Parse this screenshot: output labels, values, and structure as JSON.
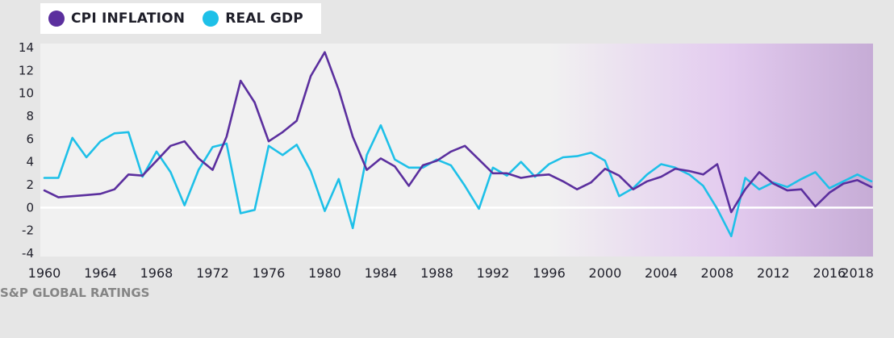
{
  "legend": {
    "items": [
      {
        "label": "CPI INFLATION",
        "color": "#5b2f9e"
      },
      {
        "label": "REAL GDP",
        "color": "#1ec0e8"
      }
    ]
  },
  "source": "S&P GLOBAL RATINGS",
  "chart_data": {
    "type": "line",
    "x": [
      1960,
      1961,
      1962,
      1963,
      1964,
      1965,
      1966,
      1967,
      1968,
      1969,
      1970,
      1971,
      1972,
      1973,
      1974,
      1975,
      1976,
      1977,
      1978,
      1979,
      1980,
      1981,
      1982,
      1983,
      1984,
      1985,
      1986,
      1987,
      1988,
      1989,
      1990,
      1991,
      1992,
      1993,
      1994,
      1995,
      1996,
      1997,
      1998,
      1999,
      2000,
      2001,
      2002,
      2003,
      2004,
      2005,
      2006,
      2007,
      2008,
      2009,
      2010,
      2011,
      2012,
      2013,
      2014,
      2015,
      2016,
      2017,
      2018,
      2019
    ],
    "xlim": [
      1960,
      2019
    ],
    "ylim": [
      -4,
      14
    ],
    "yticks": [
      -4,
      -2,
      0,
      2,
      4,
      6,
      8,
      10,
      12,
      14
    ],
    "xticks": [
      1960,
      1964,
      1968,
      1972,
      1976,
      1980,
      1984,
      1988,
      1992,
      1996,
      2000,
      2004,
      2008,
      2012,
      2016,
      2018
    ],
    "grid": false,
    "legend_position": "top-left",
    "background_gradient": {
      "start": 1996,
      "end": 2019,
      "from": "#f1f1f1",
      "mid": "#e3cbef",
      "to": "#c6acd6"
    },
    "series": [
      {
        "name": "CPI INFLATION",
        "color": "#5b2f9e",
        "values": [
          1.5,
          0.9,
          1.0,
          1.1,
          1.2,
          1.6,
          2.9,
          2.8,
          4.1,
          5.4,
          5.8,
          4.3,
          3.3,
          6.2,
          11.1,
          9.2,
          5.8,
          6.6,
          7.6,
          11.5,
          13.6,
          10.3,
          6.2,
          3.3,
          4.3,
          3.6,
          1.9,
          3.7,
          4.1,
          4.9,
          5.4,
          4.2,
          3.0,
          3.0,
          2.6,
          2.8,
          2.9,
          2.3,
          1.6,
          2.2,
          3.4,
          2.8,
          1.6,
          2.3,
          2.7,
          3.4,
          3.2,
          2.9,
          3.8,
          -0.4,
          1.6,
          3.1,
          2.1,
          1.5,
          1.6,
          0.1,
          1.3,
          2.1,
          2.4,
          1.8
        ]
      },
      {
        "name": "REAL GDP",
        "color": "#1ec0e8",
        "values": [
          2.6,
          2.6,
          6.1,
          4.4,
          5.8,
          6.5,
          6.6,
          2.7,
          4.9,
          3.1,
          0.2,
          3.3,
          5.3,
          5.6,
          -0.5,
          -0.2,
          5.4,
          4.6,
          5.5,
          3.2,
          -0.3,
          2.5,
          -1.8,
          4.6,
          7.2,
          4.2,
          3.5,
          3.5,
          4.2,
          3.7,
          1.9,
          -0.1,
          3.5,
          2.8,
          4.0,
          2.7,
          3.8,
          4.4,
          4.5,
          4.8,
          4.1,
          1.0,
          1.7,
          2.9,
          3.8,
          3.5,
          2.9,
          1.9,
          -0.1,
          -2.5,
          2.6,
          1.6,
          2.2,
          1.8,
          2.5,
          3.1,
          1.7,
          2.3,
          2.9,
          2.3
        ]
      }
    ]
  }
}
